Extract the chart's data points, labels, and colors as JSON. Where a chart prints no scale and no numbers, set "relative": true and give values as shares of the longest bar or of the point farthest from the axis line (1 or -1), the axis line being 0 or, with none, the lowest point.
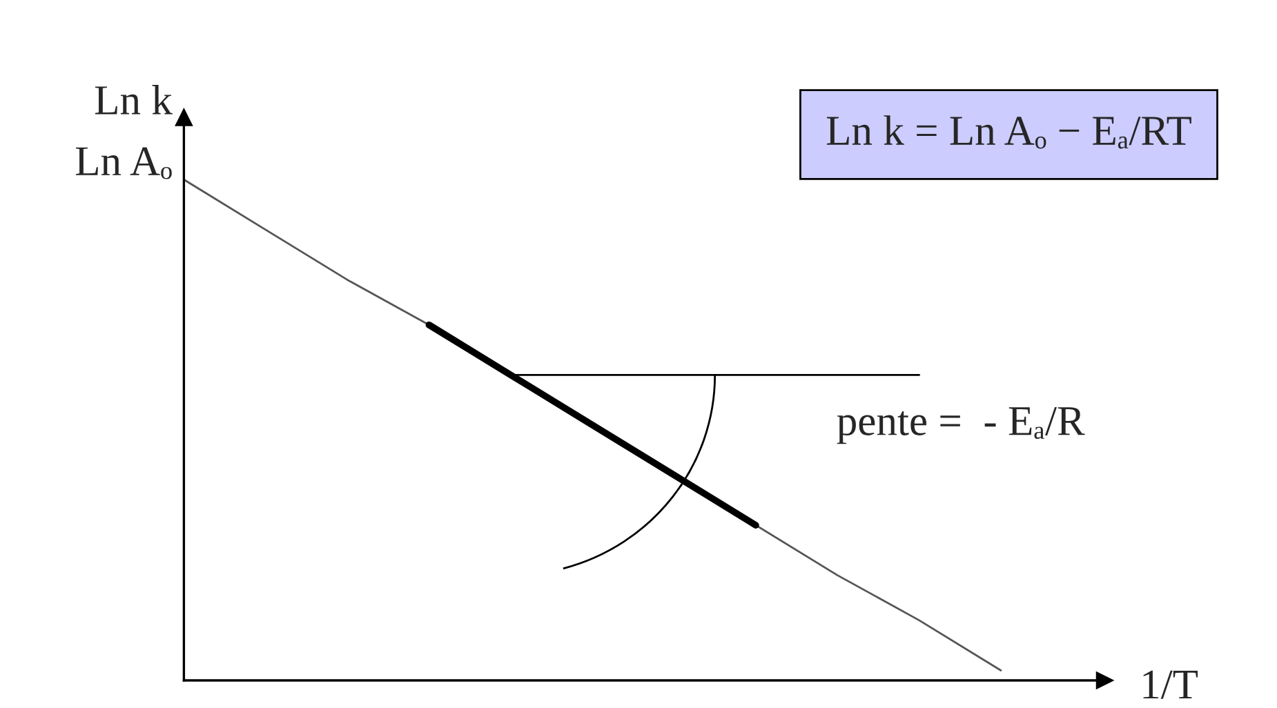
{
  "chart_data": {
    "type": "line",
    "relative": true,
    "xlabel": "1/T",
    "ylabel": "Ln k",
    "categories": [
      null,
      null,
      null,
      null,
      null,
      null,
      null,
      null,
      null,
      null,
      null
    ],
    "series": [
      {
        "color": "#555555",
        "values": [
          1,
          0.9,
          0.8,
          0.71,
          0.61,
          0.51,
          0.41,
          0.31,
          0.21,
          0.12,
          0.02
        ]
      },
      {
        "color": "#000000",
        "values": [
          null,
          null,
          null,
          0.71,
          0.61,
          0.51,
          0.41,
          0.31,
          null,
          null,
          null
        ]
      },
      {
        "color": "#000000",
        "values": [
          null,
          null,
          null,
          null,
          0.61,
          0.61,
          0.61,
          0.61,
          0.61,
          0.61,
          null
        ]
      }
    ],
    "annotations": [
      "Ln Aₒ",
      "Ln k = Ln Aₒ − Eₐ/RT",
      "pente =  - Eₐ/R"
    ],
    "grid": false,
    "legend": false,
    "tick_labels": false
  }
}
